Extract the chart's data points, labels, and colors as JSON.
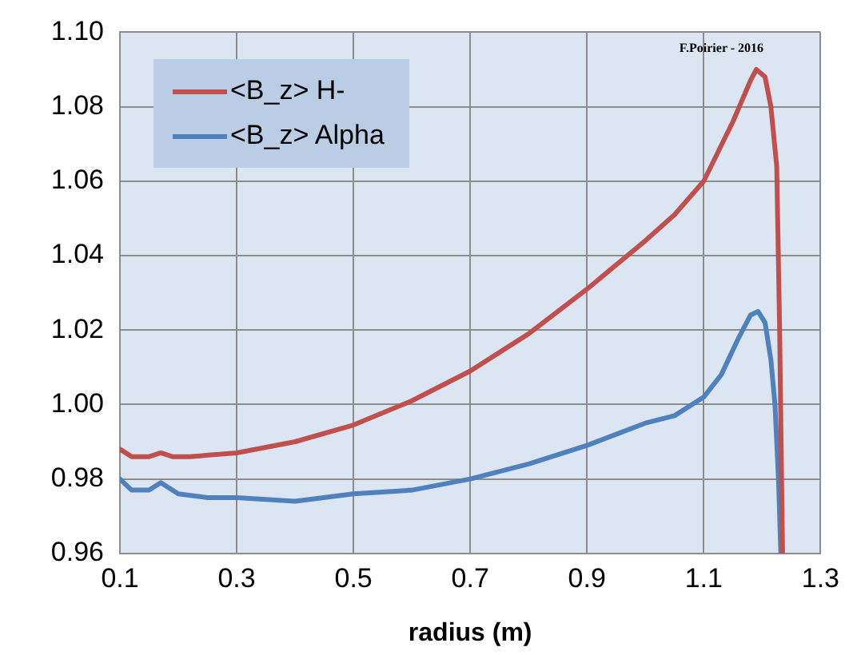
{
  "chart_data": {
    "type": "line",
    "xlabel": "radius (m)",
    "annotations": [
      "F.Poirier - 2016"
    ],
    "legend": "top left",
    "grid": true,
    "marker": "none",
    "line_style": "solid",
    "xlim": [
      0.1,
      1.3
    ],
    "xticks": [
      0.1,
      0.3,
      0.5,
      0.7,
      0.9,
      1.1,
      1.3
    ],
    "ylim": [
      0.96,
      1.1
    ],
    "yticks": [
      {
        "value": 0.96,
        "label": "0.96"
      },
      {
        "value": 0.98,
        "label": "0.98"
      },
      {
        "value": 1.0,
        "label": "1.00"
      },
      {
        "value": 1.02,
        "label": "1.02"
      },
      {
        "value": 1.04,
        "label": "1.04"
      },
      {
        "value": 1.06,
        "label": "1.06"
      },
      {
        "value": 1.08,
        "label": "1.08"
      },
      {
        "value": 1.1,
        "label": "1.10"
      }
    ],
    "series": [
      {
        "name": "<B_z> H-",
        "color": "#c0504d",
        "x": [
          0.1,
          0.12,
          0.15,
          0.17,
          0.19,
          0.22,
          0.3,
          0.4,
          0.5,
          0.6,
          0.7,
          0.8,
          0.9,
          1.0,
          1.05,
          1.1,
          1.15,
          1.18,
          1.19,
          1.205,
          1.215,
          1.225,
          1.23,
          1.235
        ],
        "values": [
          0.988,
          0.986,
          0.986,
          0.987,
          0.986,
          0.986,
          0.987,
          0.99,
          0.9945,
          1.001,
          1.009,
          1.019,
          1.031,
          1.044,
          1.051,
          1.06,
          1.076,
          1.087,
          1.09,
          1.088,
          1.08,
          1.064,
          1.02,
          0.96
        ]
      },
      {
        "name": "<B_z> Alpha",
        "color": "#4f81bd",
        "x": [
          0.1,
          0.12,
          0.15,
          0.17,
          0.2,
          0.25,
          0.3,
          0.4,
          0.5,
          0.6,
          0.7,
          0.8,
          0.9,
          1.0,
          1.05,
          1.1,
          1.13,
          1.16,
          1.18,
          1.193,
          1.205,
          1.215,
          1.222,
          1.228,
          1.232
        ],
        "values": [
          0.98,
          0.977,
          0.977,
          0.979,
          0.976,
          0.975,
          0.975,
          0.974,
          0.976,
          0.977,
          0.98,
          0.984,
          0.989,
          0.995,
          0.997,
          1.002,
          1.008,
          1.018,
          1.024,
          1.025,
          1.022,
          1.012,
          1.0,
          0.98,
          0.96
        ]
      }
    ]
  }
}
